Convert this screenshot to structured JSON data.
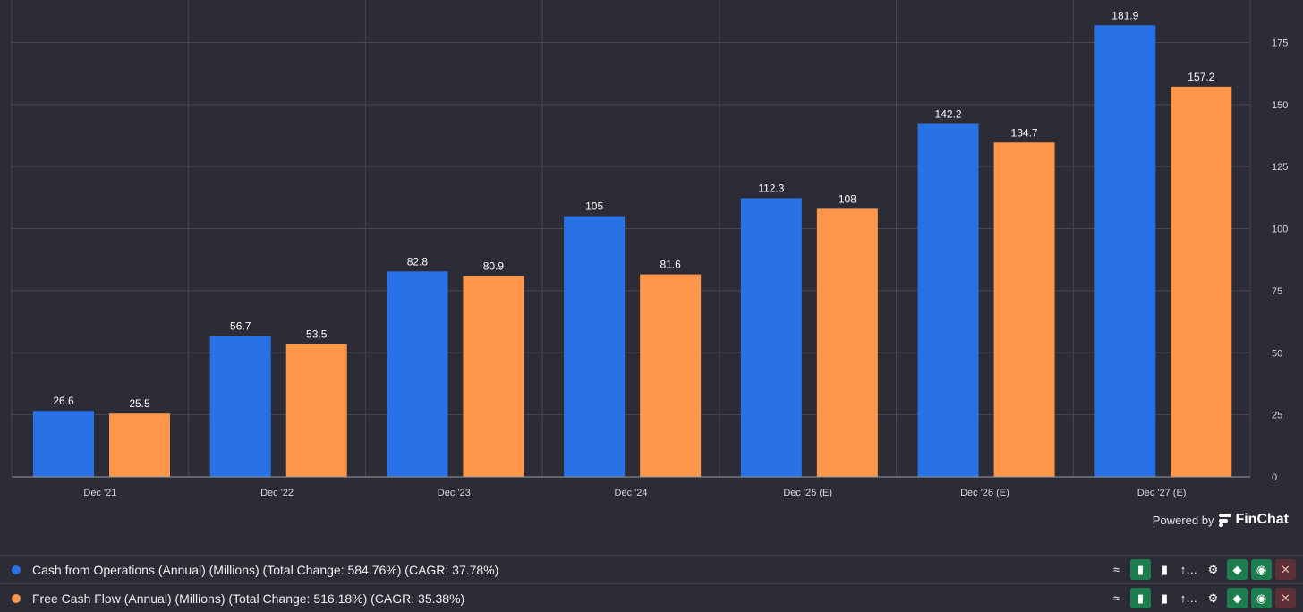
{
  "chart_data": {
    "type": "bar",
    "categories": [
      "Dec '21",
      "Dec '22",
      "Dec '23",
      "Dec '24",
      "Dec '25 (E)",
      "Dec '26 (E)",
      "Dec '27 (E)"
    ],
    "series": [
      {
        "name": "Cash from Operations (Annual) (Millions) (Total Change: 584.76%) (CAGR: 37.78%)",
        "color": "#2871e6",
        "values": [
          26.6,
          56.7,
          82.8,
          105,
          112.3,
          142.2,
          181.9
        ]
      },
      {
        "name": "Free Cash Flow (Annual) (Millions) (Total Change: 516.18%) (CAGR: 35.38%)",
        "color": "#ff974b",
        "values": [
          25.5,
          53.5,
          80.9,
          81.6,
          108,
          134.7,
          157.2
        ]
      }
    ],
    "yticks": [
      0,
      25,
      50,
      75,
      100,
      125,
      150,
      175
    ],
    "ylim": [
      0,
      190
    ],
    "y_axis_side": "right",
    "grid": true
  },
  "branding": {
    "powered_by": "Powered by",
    "brand": "FinChat"
  },
  "legend_rows": [
    {
      "text": "Cash from Operations (Annual) (Millions) (Total Change: 584.76%) (CAGR: 37.78%)",
      "color": "#2871e6"
    },
    {
      "text": "Free Cash Flow (Annual) (Millions) (Total Change: 516.18%) (CAGR: 35.38%)",
      "color": "#ff974b"
    }
  ],
  "toolbar": {
    "line_icon": "≈",
    "bar_icon": "▮",
    "bars_icon": "▮",
    "sort_label": "↑…",
    "gear_icon": "⚙",
    "tag_icon": "◆",
    "eye_icon": "◉",
    "close_icon": "✕"
  }
}
